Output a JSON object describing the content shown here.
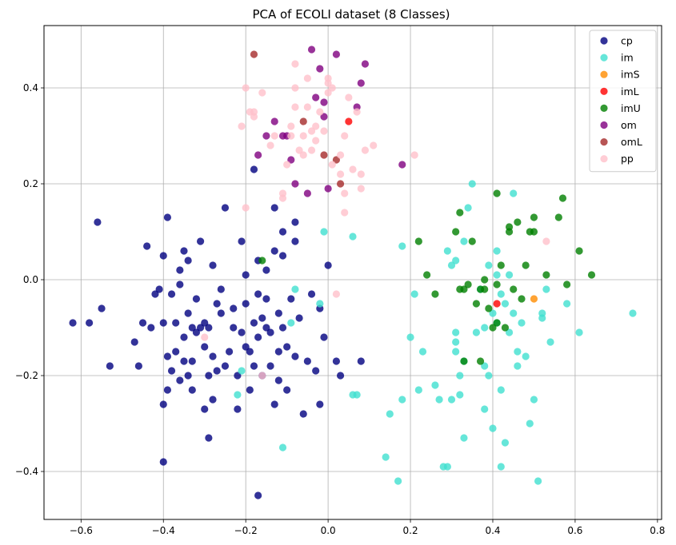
{
  "chart_data": {
    "type": "scatter",
    "title": "PCA of ECOLI dataset (8 Classes)",
    "xlabel": "",
    "ylabel": "",
    "xlim": [
      -0.69,
      0.81
    ],
    "ylim": [
      -0.5,
      0.53
    ],
    "xticks": [
      -0.6,
      -0.4,
      -0.2,
      0.0,
      0.2,
      0.4,
      0.6,
      0.8
    ],
    "xtick_labels": [
      "−0.6",
      "−0.4",
      "−0.2",
      "0.0",
      "0.2",
      "0.4",
      "0.6",
      "0.8"
    ],
    "yticks": [
      -0.4,
      -0.2,
      0.0,
      0.2,
      0.4
    ],
    "ytick_labels": [
      "−0.4",
      "−0.2",
      "0.0",
      "0.2",
      "0.4"
    ],
    "grid": true,
    "legend_position": "top-right",
    "series": [
      {
        "name": "cp",
        "color": "#000080",
        "points": [
          [
            -0.62,
            -0.09
          ],
          [
            -0.58,
            -0.09
          ],
          [
            -0.56,
            0.12
          ],
          [
            -0.55,
            -0.06
          ],
          [
            -0.53,
            -0.18
          ],
          [
            -0.47,
            -0.13
          ],
          [
            -0.46,
            -0.18
          ],
          [
            -0.45,
            -0.09
          ],
          [
            -0.44,
            0.07
          ],
          [
            -0.43,
            -0.1
          ],
          [
            -0.42,
            -0.03
          ],
          [
            -0.41,
            -0.02
          ],
          [
            -0.4,
            -0.09
          ],
          [
            -0.4,
            0.05
          ],
          [
            -0.4,
            -0.26
          ],
          [
            -0.4,
            -0.38
          ],
          [
            -0.39,
            -0.16
          ],
          [
            -0.39,
            -0.23
          ],
          [
            -0.39,
            0.13
          ],
          [
            -0.38,
            -0.03
          ],
          [
            -0.38,
            -0.19
          ],
          [
            -0.37,
            -0.09
          ],
          [
            -0.37,
            -0.15
          ],
          [
            -0.36,
            -0.01
          ],
          [
            -0.36,
            0.02
          ],
          [
            -0.36,
            -0.21
          ],
          [
            -0.35,
            -0.17
          ],
          [
            -0.35,
            -0.12
          ],
          [
            -0.35,
            0.06
          ],
          [
            -0.34,
            -0.07
          ],
          [
            -0.34,
            0.04
          ],
          [
            -0.34,
            -0.2
          ],
          [
            -0.33,
            -0.1
          ],
          [
            -0.33,
            -0.17
          ],
          [
            -0.33,
            -0.23
          ],
          [
            -0.32,
            -0.11
          ],
          [
            -0.32,
            -0.04
          ],
          [
            -0.31,
            0.08
          ],
          [
            -0.31,
            -0.1
          ],
          [
            -0.3,
            -0.14
          ],
          [
            -0.3,
            -0.09
          ],
          [
            -0.3,
            -0.27
          ],
          [
            -0.29,
            -0.33
          ],
          [
            -0.29,
            -0.2
          ],
          [
            -0.29,
            -0.1
          ],
          [
            -0.28,
            -0.16
          ],
          [
            -0.28,
            -0.25
          ],
          [
            -0.28,
            0.03
          ],
          [
            -0.27,
            -0.05
          ],
          [
            -0.27,
            -0.19
          ],
          [
            -0.26,
            -0.07
          ],
          [
            -0.26,
            -0.02
          ],
          [
            -0.25,
            -0.18
          ],
          [
            -0.25,
            0.15
          ],
          [
            -0.24,
            -0.15
          ],
          [
            -0.23,
            -0.06
          ],
          [
            -0.23,
            -0.1
          ],
          [
            -0.22,
            -0.2
          ],
          [
            -0.22,
            -0.27
          ],
          [
            -0.21,
            0.08
          ],
          [
            -0.21,
            -0.11
          ],
          [
            -0.2,
            0.01
          ],
          [
            -0.2,
            -0.14
          ],
          [
            -0.2,
            -0.05
          ],
          [
            -0.19,
            -0.15
          ],
          [
            -0.19,
            -0.23
          ],
          [
            -0.18,
            0.23
          ],
          [
            -0.18,
            -0.09
          ],
          [
            -0.18,
            -0.18
          ],
          [
            -0.17,
            -0.03
          ],
          [
            -0.17,
            0.04
          ],
          [
            -0.17,
            -0.12
          ],
          [
            -0.17,
            -0.45
          ],
          [
            -0.16,
            -0.08
          ],
          [
            -0.16,
            -0.2
          ],
          [
            -0.15,
            -0.04
          ],
          [
            -0.15,
            0.02
          ],
          [
            -0.15,
            -0.1
          ],
          [
            -0.14,
            -0.11
          ],
          [
            -0.14,
            -0.18
          ],
          [
            -0.13,
            0.06
          ],
          [
            -0.13,
            0.15
          ],
          [
            -0.13,
            -0.26
          ],
          [
            -0.12,
            -0.07
          ],
          [
            -0.12,
            -0.15
          ],
          [
            -0.12,
            -0.21
          ],
          [
            -0.11,
            0.1
          ],
          [
            -0.11,
            0.05
          ],
          [
            -0.11,
            -0.1
          ],
          [
            -0.1,
            -0.14
          ],
          [
            -0.1,
            -0.23
          ],
          [
            -0.09,
            -0.04
          ],
          [
            -0.08,
            0.12
          ],
          [
            -0.08,
            0.08
          ],
          [
            -0.08,
            -0.16
          ],
          [
            -0.07,
            -0.08
          ],
          [
            -0.06,
            -0.28
          ],
          [
            -0.05,
            -0.17
          ],
          [
            -0.04,
            -0.03
          ],
          [
            -0.03,
            -0.19
          ],
          [
            -0.02,
            -0.06
          ],
          [
            -0.02,
            -0.26
          ],
          [
            -0.01,
            -0.12
          ],
          [
            0.0,
            0.03
          ],
          [
            0.02,
            -0.17
          ],
          [
            0.03,
            -0.2
          ],
          [
            0.08,
            -0.17
          ]
        ]
      },
      {
        "name": "im",
        "color": "#40e0d0",
        "points": [
          [
            -0.22,
            -0.24
          ],
          [
            -0.21,
            -0.19
          ],
          [
            -0.11,
            -0.35
          ],
          [
            -0.09,
            -0.09
          ],
          [
            -0.08,
            -0.02
          ],
          [
            -0.02,
            -0.05
          ],
          [
            -0.01,
            0.1
          ],
          [
            0.06,
            0.09
          ],
          [
            0.06,
            -0.24
          ],
          [
            0.07,
            -0.24
          ],
          [
            0.14,
            -0.37
          ],
          [
            0.15,
            -0.28
          ],
          [
            0.17,
            -0.42
          ],
          [
            0.18,
            0.07
          ],
          [
            0.18,
            -0.25
          ],
          [
            0.2,
            -0.12
          ],
          [
            0.21,
            -0.03
          ],
          [
            0.22,
            -0.23
          ],
          [
            0.23,
            -0.15
          ],
          [
            0.26,
            -0.22
          ],
          [
            0.27,
            -0.25
          ],
          [
            0.28,
            -0.39
          ],
          [
            0.29,
            0.06
          ],
          [
            0.29,
            -0.39
          ],
          [
            0.3,
            -0.25
          ],
          [
            0.3,
            0.03
          ],
          [
            0.31,
            0.04
          ],
          [
            0.31,
            -0.11
          ],
          [
            0.31,
            -0.15
          ],
          [
            0.31,
            -0.13
          ],
          [
            0.32,
            -0.2
          ],
          [
            0.32,
            -0.24
          ],
          [
            0.33,
            -0.33
          ],
          [
            0.33,
            0.08
          ],
          [
            0.33,
            -0.17
          ],
          [
            0.34,
            0.15
          ],
          [
            0.35,
            0.2
          ],
          [
            0.36,
            -0.11
          ],
          [
            0.37,
            -0.02
          ],
          [
            0.38,
            -0.1
          ],
          [
            0.38,
            -0.18
          ],
          [
            0.38,
            -0.27
          ],
          [
            0.39,
            0.03
          ],
          [
            0.39,
            -0.2
          ],
          [
            0.4,
            -0.31
          ],
          [
            0.4,
            -0.07
          ],
          [
            0.41,
            0.01
          ],
          [
            0.41,
            -0.09
          ],
          [
            0.41,
            0.06
          ],
          [
            0.42,
            -0.03
          ],
          [
            0.42,
            -0.23
          ],
          [
            0.42,
            -0.39
          ],
          [
            0.43,
            -0.05
          ],
          [
            0.43,
            -0.34
          ],
          [
            0.44,
            0.01
          ],
          [
            0.44,
            -0.11
          ],
          [
            0.45,
            0.18
          ],
          [
            0.45,
            -0.07
          ],
          [
            0.46,
            -0.15
          ],
          [
            0.46,
            -0.18
          ],
          [
            0.47,
            -0.09
          ],
          [
            0.48,
            -0.16
          ],
          [
            0.49,
            -0.3
          ],
          [
            0.5,
            -0.25
          ],
          [
            0.51,
            -0.42
          ],
          [
            0.52,
            -0.07
          ],
          [
            0.52,
            -0.08
          ],
          [
            0.53,
            -0.02
          ],
          [
            0.54,
            -0.13
          ],
          [
            0.58,
            -0.05
          ],
          [
            0.61,
            -0.11
          ],
          [
            0.74,
            -0.07
          ]
        ]
      },
      {
        "name": "imS",
        "color": "#ff8c00",
        "points": [
          [
            0.5,
            -0.04
          ]
        ]
      },
      {
        "name": "imL",
        "color": "#ff0000",
        "points": [
          [
            0.05,
            0.33
          ],
          [
            0.41,
            -0.05
          ]
        ]
      },
      {
        "name": "imU",
        "color": "#008000",
        "points": [
          [
            -0.16,
            0.04
          ],
          [
            0.22,
            0.08
          ],
          [
            0.24,
            0.01
          ],
          [
            0.26,
            -0.03
          ],
          [
            0.31,
            0.1
          ],
          [
            0.32,
            -0.02
          ],
          [
            0.32,
            0.14
          ],
          [
            0.33,
            -0.02
          ],
          [
            0.33,
            -0.17
          ],
          [
            0.34,
            -0.01
          ],
          [
            0.35,
            0.08
          ],
          [
            0.36,
            -0.05
          ],
          [
            0.37,
            -0.17
          ],
          [
            0.37,
            -0.02
          ],
          [
            0.38,
            -0.02
          ],
          [
            0.38,
            0.0
          ],
          [
            0.39,
            -0.06
          ],
          [
            0.4,
            -0.1
          ],
          [
            0.41,
            0.18
          ],
          [
            0.41,
            -0.01
          ],
          [
            0.41,
            -0.09
          ],
          [
            0.42,
            0.03
          ],
          [
            0.43,
            -0.1
          ],
          [
            0.44,
            0.11
          ],
          [
            0.44,
            0.1
          ],
          [
            0.45,
            -0.02
          ],
          [
            0.46,
            0.12
          ],
          [
            0.47,
            -0.04
          ],
          [
            0.48,
            0.03
          ],
          [
            0.49,
            0.1
          ],
          [
            0.5,
            0.1
          ],
          [
            0.5,
            0.13
          ],
          [
            0.53,
            0.01
          ],
          [
            0.56,
            0.13
          ],
          [
            0.57,
            0.17
          ],
          [
            0.58,
            -0.01
          ],
          [
            0.61,
            0.06
          ],
          [
            0.64,
            0.01
          ]
        ]
      },
      {
        "name": "om",
        "color": "#800080",
        "points": [
          [
            -0.17,
            0.26
          ],
          [
            -0.15,
            0.3
          ],
          [
            -0.13,
            0.33
          ],
          [
            -0.11,
            0.3
          ],
          [
            -0.1,
            0.3
          ],
          [
            -0.09,
            0.25
          ],
          [
            -0.08,
            0.2
          ],
          [
            -0.05,
            0.18
          ],
          [
            -0.04,
            0.48
          ],
          [
            -0.03,
            0.38
          ],
          [
            -0.02,
            0.44
          ],
          [
            -0.01,
            0.34
          ],
          [
            -0.01,
            0.37
          ],
          [
            0.0,
            0.19
          ],
          [
            0.02,
            0.47
          ],
          [
            0.07,
            0.36
          ],
          [
            0.08,
            0.41
          ],
          [
            0.09,
            0.45
          ],
          [
            0.18,
            0.24
          ]
        ]
      },
      {
        "name": "omL",
        "color": "#a52a2a",
        "points": [
          [
            -0.18,
            0.47
          ],
          [
            -0.06,
            0.33
          ],
          [
            -0.01,
            0.26
          ],
          [
            0.02,
            0.25
          ],
          [
            0.03,
            0.2
          ]
        ]
      },
      {
        "name": "pp",
        "color": "#ffc0cb",
        "points": [
          [
            -0.3,
            -0.12
          ],
          [
            -0.21,
            0.32
          ],
          [
            -0.2,
            0.4
          ],
          [
            -0.2,
            0.15
          ],
          [
            -0.19,
            0.35
          ],
          [
            -0.18,
            0.34
          ],
          [
            -0.18,
            0.35
          ],
          [
            -0.16,
            0.39
          ],
          [
            -0.16,
            -0.2
          ],
          [
            -0.14,
            0.28
          ],
          [
            -0.13,
            0.3
          ],
          [
            -0.11,
            0.18
          ],
          [
            -0.11,
            0.17
          ],
          [
            -0.1,
            0.24
          ],
          [
            -0.09,
            0.32
          ],
          [
            -0.09,
            0.3
          ],
          [
            -0.08,
            0.45
          ],
          [
            -0.08,
            0.4
          ],
          [
            -0.08,
            0.36
          ],
          [
            -0.07,
            0.27
          ],
          [
            -0.06,
            0.3
          ],
          [
            -0.06,
            0.26
          ],
          [
            -0.05,
            0.42
          ],
          [
            -0.05,
            0.36
          ],
          [
            -0.04,
            0.31
          ],
          [
            -0.04,
            0.27
          ],
          [
            -0.03,
            0.32
          ],
          [
            -0.03,
            0.29
          ],
          [
            -0.02,
            0.35
          ],
          [
            -0.01,
            0.31
          ],
          [
            0.0,
            0.39
          ],
          [
            0.0,
            0.42
          ],
          [
            0.0,
            0.41
          ],
          [
            0.01,
            0.4
          ],
          [
            0.01,
            0.24
          ],
          [
            0.02,
            -0.03
          ],
          [
            0.03,
            0.26
          ],
          [
            0.03,
            0.22
          ],
          [
            0.04,
            0.18
          ],
          [
            0.04,
            0.14
          ],
          [
            0.04,
            0.3
          ],
          [
            0.05,
            0.38
          ],
          [
            0.06,
            0.23
          ],
          [
            0.07,
            0.35
          ],
          [
            0.08,
            0.19
          ],
          [
            0.08,
            0.22
          ],
          [
            0.09,
            0.27
          ],
          [
            0.11,
            0.28
          ],
          [
            0.21,
            0.26
          ],
          [
            0.53,
            0.08
          ]
        ]
      }
    ]
  }
}
